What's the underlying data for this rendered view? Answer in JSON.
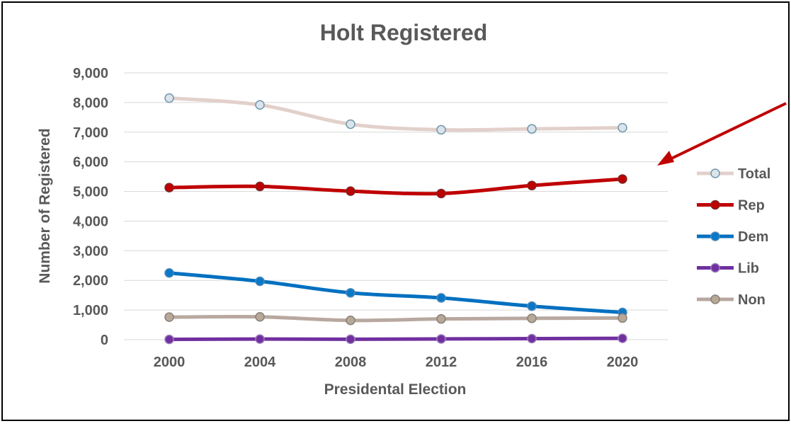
{
  "chart_data": {
    "type": "line",
    "title": "Holt Registered",
    "xlabel": "Presidental Election",
    "ylabel": "Number of Registered",
    "categories": [
      "2000",
      "2004",
      "2008",
      "2012",
      "2016",
      "2020"
    ],
    "ylim": [
      0,
      9000
    ],
    "ytick_labels": [
      "0",
      "1,000",
      "2,000",
      "3,000",
      "4,000",
      "5,000",
      "6,000",
      "7,000",
      "8,000",
      "9,000"
    ],
    "ytick_values": [
      0,
      1000,
      2000,
      3000,
      4000,
      5000,
      6000,
      7000,
      8000,
      9000
    ],
    "grid": "horizontal",
    "legend_position": "right",
    "series": [
      {
        "name": "Total",
        "color": "#e2d0cb",
        "marker_fill": "#dbe4ea",
        "marker_edge": "#6f97ad",
        "values": [
          8150,
          7920,
          7270,
          7080,
          7110,
          7150
        ]
      },
      {
        "name": "Rep",
        "color": "#c00000",
        "marker_fill": "#c00000",
        "marker_edge": "#7a2a2a",
        "values": [
          5130,
          5170,
          5010,
          4930,
          5200,
          5420
        ]
      },
      {
        "name": "Dem",
        "color": "#0070c0",
        "marker_fill": "#0a78c8",
        "marker_edge": "#4a88b8",
        "values": [
          2250,
          1970,
          1580,
          1410,
          1130,
          920
        ]
      },
      {
        "name": "Lib",
        "color": "#7030a0",
        "marker_fill": "#7030a0",
        "marker_edge": "#9c7cb8",
        "values": [
          10,
          20,
          15,
          25,
          35,
          45
        ]
      },
      {
        "name": "Non",
        "color": "#b8a8a0",
        "marker_fill": "#b8a898",
        "marker_edge": "#8a8078",
        "values": [
          760,
          770,
          650,
          700,
          720,
          730
        ]
      }
    ]
  },
  "annotation": {
    "type": "arrow",
    "color": "#c00000"
  },
  "colors": {
    "border": "#000000",
    "text": "#595959",
    "grid": "#d9d9d9",
    "background": "#ffffff"
  }
}
